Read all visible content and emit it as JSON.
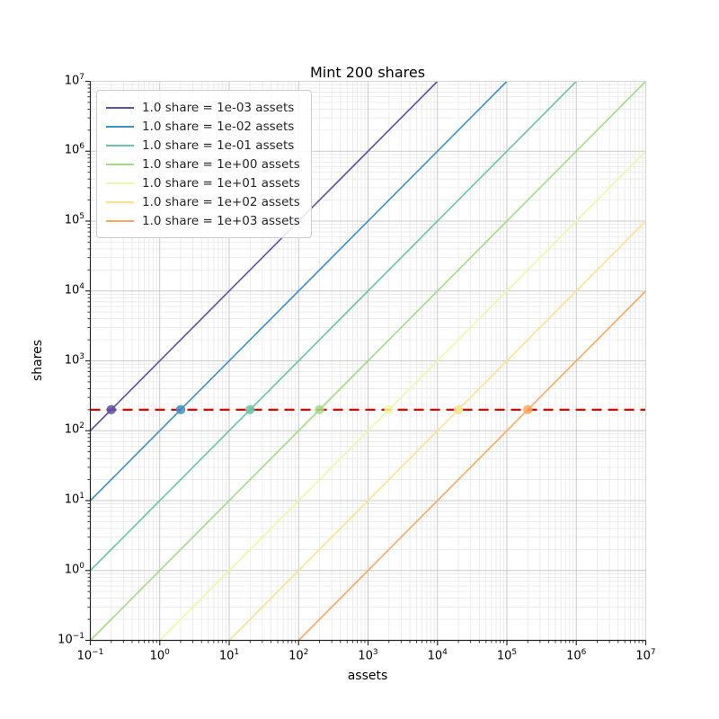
{
  "figure": {
    "title": "Mint 200 shares",
    "xlabel": "assets",
    "ylabel": "shares"
  },
  "chart_data": {
    "type": "line",
    "title": "Mint 200 shares",
    "xlabel": "assets",
    "ylabel": "shares",
    "xscale": "log",
    "yscale": "log",
    "xlim": [
      0.1,
      10000000
    ],
    "ylim": [
      0.1,
      10000000
    ],
    "x_tick_exponents": [
      -1,
      0,
      1,
      2,
      3,
      4,
      5,
      6,
      7
    ],
    "y_tick_exponents": [
      -1,
      0,
      1,
      2,
      3,
      4,
      5,
      6,
      7
    ],
    "grid": "major and minor, both axes",
    "legend_position": "upper left",
    "relation": "shares = assets / assets_per_share (straight unit-slope lines in log-log space)",
    "series": [
      {
        "name": "1.0 share = 1e-03 assets",
        "assets_per_share": 0.001,
        "color": "#5a52a5",
        "marker": {
          "assets": 0.2,
          "shares": 200
        }
      },
      {
        "name": "1.0 share = 1e-02 assets",
        "assets_per_share": 0.01,
        "color": "#3f8fc4",
        "marker": {
          "assets": 2,
          "shares": 200
        }
      },
      {
        "name": "1.0 share = 1e-01 assets",
        "assets_per_share": 0.1,
        "color": "#68c5a3",
        "marker": {
          "assets": 20,
          "shares": 200
        }
      },
      {
        "name": "1.0 share = 1e+00 assets",
        "assets_per_share": 1,
        "color": "#a5da85",
        "marker": {
          "assets": 200,
          "shares": 200
        }
      },
      {
        "name": "1.0 share = 1e+01 assets",
        "assets_per_share": 10,
        "color": "#eef8a4",
        "marker": {
          "assets": 2000,
          "shares": 200
        }
      },
      {
        "name": "1.0 share = 1e+02 assets",
        "assets_per_share": 100,
        "color": "#fee18f",
        "marker": {
          "assets": 20000,
          "shares": 200
        }
      },
      {
        "name": "1.0 share = 1e+03 assets",
        "assets_per_share": 1000,
        "color": "#fca85f",
        "marker": {
          "assets": 200000,
          "shares": 200
        }
      }
    ],
    "reference_line": {
      "shares": 200,
      "color": "#e90000",
      "style": "dashed",
      "linewidth": 2.3
    }
  },
  "colors": {
    "background": "#ffffff",
    "grid_major": "#c9c9c9",
    "grid_minor": "#e7e7e7",
    "spine_dark": "#262626",
    "spine_light": "#d4d4d4",
    "tick": "#262626",
    "text": "#000000"
  }
}
